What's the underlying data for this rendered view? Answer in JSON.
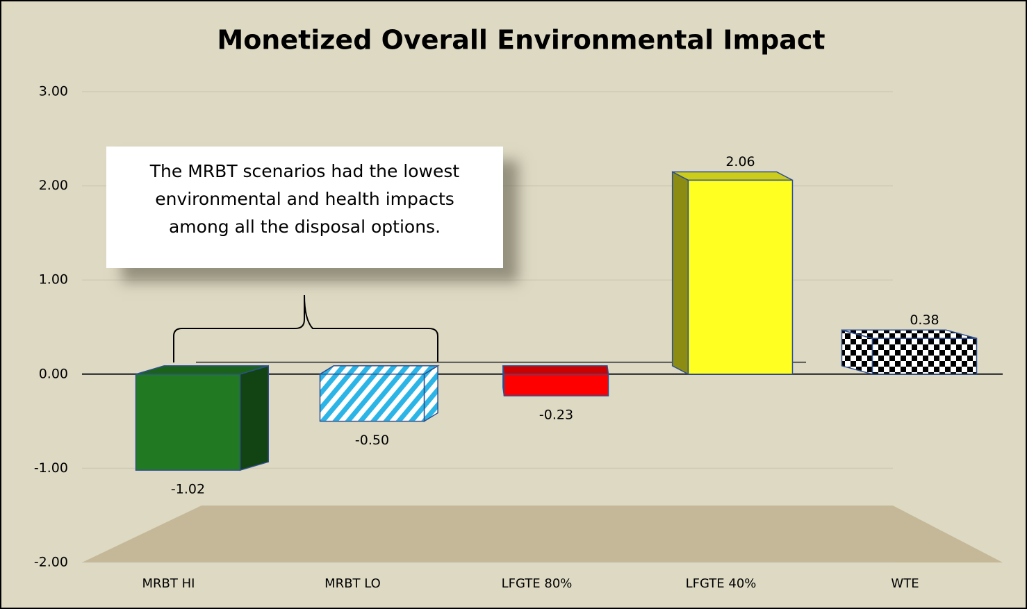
{
  "chart_data": {
    "type": "bar3d",
    "title": "Monetized Overall Environmental Impact",
    "categories": [
      "MRBT HI",
      "MRBT LO",
      "LFGTE 80%",
      "LFGTE 40%",
      "WTE"
    ],
    "values": [
      -1.02,
      -0.5,
      -0.23,
      2.06,
      0.38
    ],
    "value_labels": [
      "-1.02",
      "-0.50",
      "-0.23",
      "2.06",
      "0.38"
    ],
    "colors": [
      "#217a21",
      "#2bb5e6",
      "#ff0000",
      "#ffff22",
      "#000000"
    ],
    "patterns": [
      null,
      "hatch",
      null,
      null,
      "checker"
    ],
    "ylim": [
      -2,
      3
    ],
    "yticks": [
      {
        "value": -2,
        "label": "-2.00"
      },
      {
        "value": -1,
        "label": "-1.00"
      },
      {
        "value": 0,
        "label": "0.00"
      },
      {
        "value": 1,
        "label": "1.00"
      },
      {
        "value": 2,
        "label": "2.00"
      },
      {
        "value": 3,
        "label": "3.00"
      }
    ],
    "grid": true,
    "annotation": "The MRBT scenarios had the lowest environmental and health impacts among all the disposal options."
  }
}
